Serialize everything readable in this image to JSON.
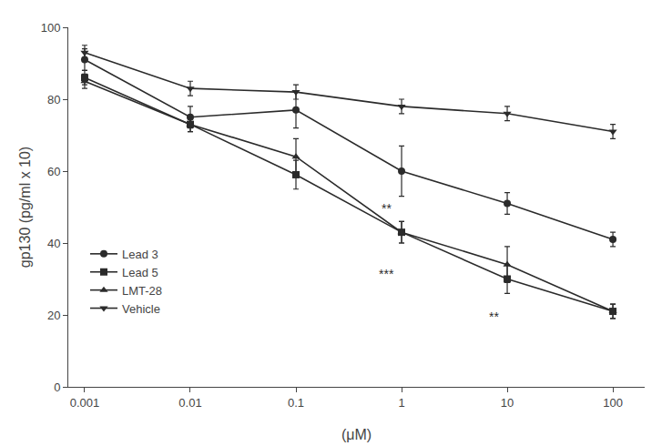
{
  "chart_data": {
    "type": "line",
    "xlabel": "(μM)",
    "ylabel": "gp130 (pg/ml x 10)",
    "x": [
      0.001,
      0.01,
      0.1,
      1,
      10,
      100
    ],
    "log": "x",
    "xlim": [
      0.0007,
      200
    ],
    "xticks": [
      0.001,
      0.01,
      0.1,
      1,
      10,
      100
    ],
    "ylim": [
      0,
      100
    ],
    "yticks": [
      0,
      20,
      40,
      60,
      80,
      100
    ],
    "grid": false,
    "legend": "lower left",
    "series": [
      {
        "name": "Lead 3",
        "color": "#2b2b2b",
        "marker": "circle",
        "line_style": "solid",
        "values": [
          91,
          75,
          77,
          60,
          51,
          41
        ],
        "errors": [
          3,
          3,
          5,
          7,
          3,
          2
        ]
      },
      {
        "name": "Lead 5",
        "color": "#2b2b2b",
        "marker": "square",
        "line_style": "solid",
        "values": [
          86,
          73,
          59,
          43,
          30,
          21
        ],
        "errors": [
          2,
          2,
          4,
          3,
          4,
          2
        ]
      },
      {
        "name": "LMT-28",
        "color": "#2b2b2b",
        "marker": "triangle-up",
        "line_style": "solid",
        "values": [
          85,
          73,
          64,
          43,
          34,
          21
        ],
        "errors": [
          2,
          2,
          5,
          3,
          5,
          2
        ]
      },
      {
        "name": "Vehicle",
        "color": "#2b2b2b",
        "marker": "triangle-down",
        "line_style": "solid",
        "values": [
          93,
          83,
          82,
          78,
          76,
          71
        ],
        "errors": [
          2,
          2,
          2,
          2,
          2,
          2
        ]
      }
    ],
    "annotations": [
      {
        "text": "**",
        "x": 0.72,
        "y": 47
      },
      {
        "text": "***",
        "x": 0.72,
        "y": 34
      },
      {
        "text": "**",
        "x": 7.5,
        "y": 22
      }
    ]
  }
}
